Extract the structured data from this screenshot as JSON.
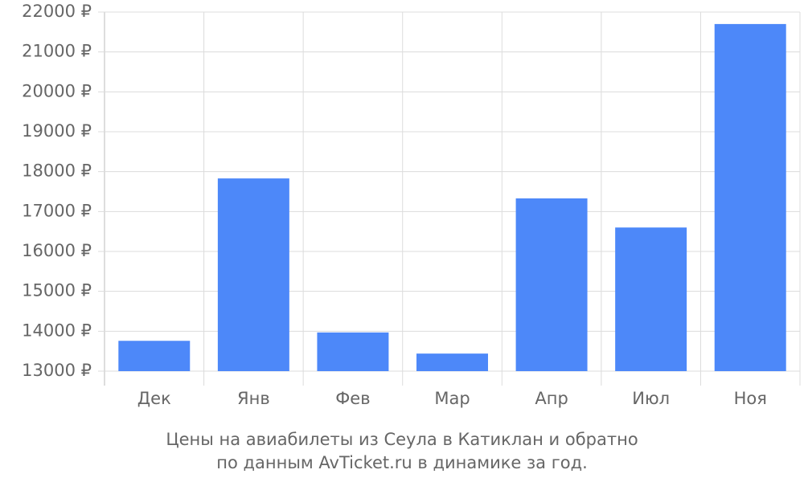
{
  "chart_data": {
    "type": "bar",
    "title_lines": [
      "Цены на авиабилеты из Сеула в Катиклан и обратно",
      "по данным AvTicket.ru в динамике за год."
    ],
    "categories": [
      "Дек",
      "Янв",
      "Фев",
      "Мар",
      "Апр",
      "Июл",
      "Ноя"
    ],
    "values": [
      13760,
      17830,
      13970,
      13440,
      17330,
      16600,
      21700
    ],
    "color": "#4d88f9",
    "ylim": [
      13000,
      22000
    ],
    "yticks": [
      {
        "value": 13000,
        "label": "13000 ₽"
      },
      {
        "value": 14000,
        "label": "14000 ₽"
      },
      {
        "value": 15000,
        "label": "15000 ₽"
      },
      {
        "value": 16000,
        "label": "16000 ₽"
      },
      {
        "value": 17000,
        "label": "17000 ₽"
      },
      {
        "value": 18000,
        "label": "18000 ₽"
      },
      {
        "value": 19000,
        "label": "19000 ₽"
      },
      {
        "value": 20000,
        "label": "20000 ₽"
      },
      {
        "value": 21000,
        "label": "21000 ₽"
      },
      {
        "value": 22000,
        "label": "22000 ₽"
      }
    ],
    "grid": true
  }
}
